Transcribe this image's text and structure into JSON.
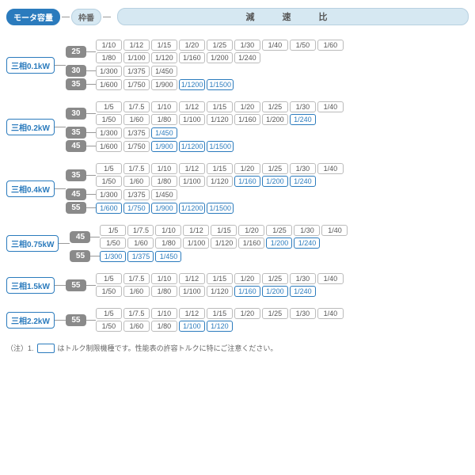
{
  "header": {
    "motor_label": "モータ容量",
    "frame_label": "枠番",
    "ratio_label": "減 速 比"
  },
  "colors": {
    "accent": "#2b7bbd",
    "header_fill": "#d6e8f2",
    "frame_fill": "#8a8a8a",
    "border_gray": "#bbb",
    "line": "#999"
  },
  "groups": [
    {
      "motor": "三相0.1kW",
      "frames": [
        {
          "frame": "25",
          "rows": [
            [
              {
                "v": "1/10"
              },
              {
                "v": "1/12"
              },
              {
                "v": "1/15"
              },
              {
                "v": "1/20"
              },
              {
                "v": "1/25"
              },
              {
                "v": "1/30"
              },
              {
                "v": "1/40"
              },
              {
                "v": "1/50"
              },
              {
                "v": "1/60"
              }
            ],
            [
              {
                "v": "1/80"
              },
              {
                "v": "1/100"
              },
              {
                "v": "1/120"
              },
              {
                "v": "1/160"
              },
              {
                "v": "1/200"
              },
              {
                "v": "1/240"
              }
            ]
          ]
        },
        {
          "frame": "30",
          "rows": [
            [
              {
                "v": "1/300"
              },
              {
                "v": "1/375"
              },
              {
                "v": "1/450"
              }
            ]
          ]
        },
        {
          "frame": "35",
          "rows": [
            [
              {
                "v": "1/600"
              },
              {
                "v": "1/750"
              },
              {
                "v": "1/900"
              },
              {
                "v": "1/1200",
                "hl": true
              },
              {
                "v": "1/1500",
                "hl": true
              }
            ]
          ]
        }
      ]
    },
    {
      "motor": "三相0.2kW",
      "frames": [
        {
          "frame": "30",
          "rows": [
            [
              {
                "v": "1/5"
              },
              {
                "v": "1/7.5"
              },
              {
                "v": "1/10"
              },
              {
                "v": "1/12"
              },
              {
                "v": "1/15"
              },
              {
                "v": "1/20"
              },
              {
                "v": "1/25"
              },
              {
                "v": "1/30"
              },
              {
                "v": "1/40"
              }
            ],
            [
              {
                "v": "1/50"
              },
              {
                "v": "1/60"
              },
              {
                "v": "1/80"
              },
              {
                "v": "1/100"
              },
              {
                "v": "1/120"
              },
              {
                "v": "1/160"
              },
              {
                "v": "1/200"
              },
              {
                "v": "1/240",
                "hl": true
              }
            ]
          ]
        },
        {
          "frame": "35",
          "rows": [
            [
              {
                "v": "1/300"
              },
              {
                "v": "1/375"
              },
              {
                "v": "1/450",
                "hl": true
              }
            ]
          ]
        },
        {
          "frame": "45",
          "rows": [
            [
              {
                "v": "1/600"
              },
              {
                "v": "1/750"
              },
              {
                "v": "1/900",
                "hl": true
              },
              {
                "v": "1/1200",
                "hl": true
              },
              {
                "v": "1/1500",
                "hl": true
              }
            ]
          ]
        }
      ]
    },
    {
      "motor": "三相0.4kW",
      "frames": [
        {
          "frame": "35",
          "rows": [
            [
              {
                "v": "1/5"
              },
              {
                "v": "1/7.5"
              },
              {
                "v": "1/10"
              },
              {
                "v": "1/12"
              },
              {
                "v": "1/15"
              },
              {
                "v": "1/20"
              },
              {
                "v": "1/25"
              },
              {
                "v": "1/30"
              },
              {
                "v": "1/40"
              }
            ],
            [
              {
                "v": "1/50"
              },
              {
                "v": "1/60"
              },
              {
                "v": "1/80"
              },
              {
                "v": "1/100"
              },
              {
                "v": "1/120"
              },
              {
                "v": "1/160",
                "hl": true
              },
              {
                "v": "1/200",
                "hl": true
              },
              {
                "v": "1/240",
                "hl": true
              }
            ]
          ]
        },
        {
          "frame": "45",
          "rows": [
            [
              {
                "v": "1/300"
              },
              {
                "v": "1/375"
              },
              {
                "v": "1/450"
              }
            ]
          ]
        },
        {
          "frame": "55",
          "rows": [
            [
              {
                "v": "1/600",
                "hl": true
              },
              {
                "v": "1/750",
                "hl": true
              },
              {
                "v": "1/900",
                "hl": true
              },
              {
                "v": "1/1200",
                "hl": true
              },
              {
                "v": "1/1500",
                "hl": true
              }
            ]
          ]
        }
      ]
    },
    {
      "motor": "三相0.75kW",
      "frames": [
        {
          "frame": "45",
          "rows": [
            [
              {
                "v": "1/5"
              },
              {
                "v": "1/7.5"
              },
              {
                "v": "1/10"
              },
              {
                "v": "1/12"
              },
              {
                "v": "1/15"
              },
              {
                "v": "1/20"
              },
              {
                "v": "1/25"
              },
              {
                "v": "1/30"
              },
              {
                "v": "1/40"
              }
            ],
            [
              {
                "v": "1/50"
              },
              {
                "v": "1/60"
              },
              {
                "v": "1/80"
              },
              {
                "v": "1/100"
              },
              {
                "v": "1/120"
              },
              {
                "v": "1/160"
              },
              {
                "v": "1/200",
                "hl": true
              },
              {
                "v": "1/240",
                "hl": true
              }
            ]
          ]
        },
        {
          "frame": "55",
          "rows": [
            [
              {
                "v": "1/300",
                "hl": true
              },
              {
                "v": "1/375",
                "hl": true
              },
              {
                "v": "1/450",
                "hl": true
              }
            ]
          ]
        }
      ]
    },
    {
      "motor": "三相1.5kW",
      "frames": [
        {
          "frame": "55",
          "rows": [
            [
              {
                "v": "1/5"
              },
              {
                "v": "1/7.5"
              },
              {
                "v": "1/10"
              },
              {
                "v": "1/12"
              },
              {
                "v": "1/15"
              },
              {
                "v": "1/20"
              },
              {
                "v": "1/25"
              },
              {
                "v": "1/30"
              },
              {
                "v": "1/40"
              }
            ],
            [
              {
                "v": "1/50"
              },
              {
                "v": "1/60"
              },
              {
                "v": "1/80"
              },
              {
                "v": "1/100"
              },
              {
                "v": "1/120"
              },
              {
                "v": "1/160",
                "hl": true
              },
              {
                "v": "1/200",
                "hl": true
              },
              {
                "v": "1/240",
                "hl": true
              }
            ]
          ]
        }
      ]
    },
    {
      "motor": "三相2.2kW",
      "frames": [
        {
          "frame": "55",
          "rows": [
            [
              {
                "v": "1/5"
              },
              {
                "v": "1/7.5"
              },
              {
                "v": "1/10"
              },
              {
                "v": "1/12"
              },
              {
                "v": "1/15"
              },
              {
                "v": "1/20"
              },
              {
                "v": "1/25"
              },
              {
                "v": "1/30"
              },
              {
                "v": "1/40"
              }
            ],
            [
              {
                "v": "1/50"
              },
              {
                "v": "1/60"
              },
              {
                "v": "1/80"
              },
              {
                "v": "1/100",
                "hl": true
              },
              {
                "v": "1/120",
                "hl": true
              }
            ]
          ]
        }
      ]
    }
  ],
  "note": {
    "prefix": "（注）1.",
    "text": "はトルク制限機種です。性能表の許容トルクに特にご注意ください。"
  }
}
